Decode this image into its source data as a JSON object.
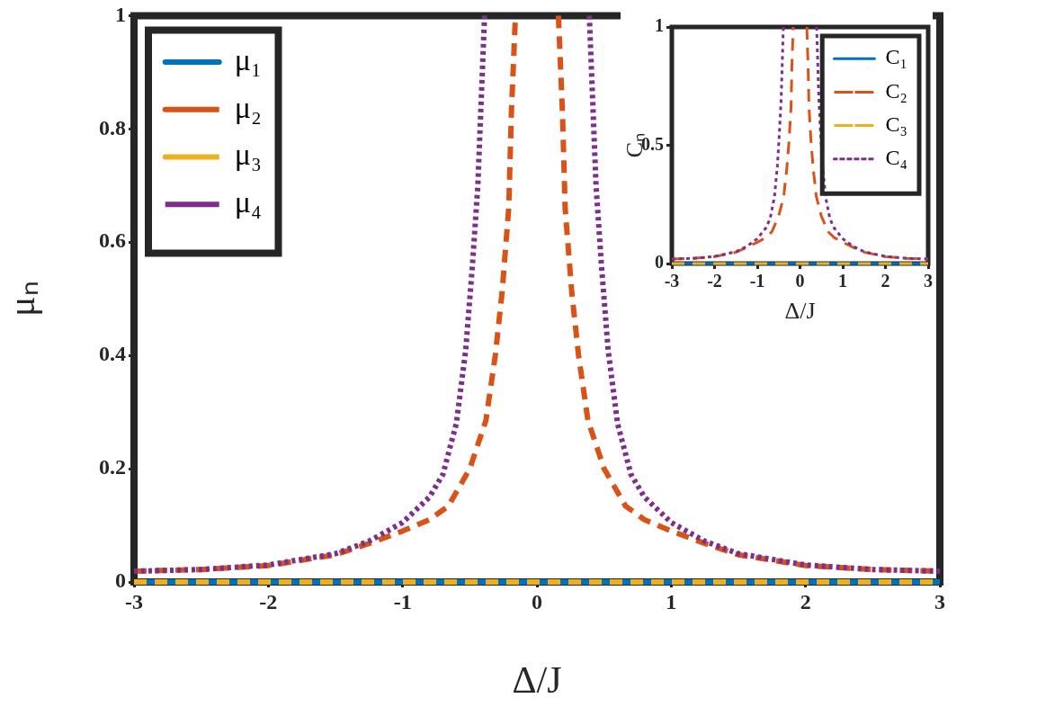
{
  "chart_data": [
    {
      "type": "line",
      "xlabel": "Δ/J",
      "ylabel": "μₙ",
      "xlim": [
        -3,
        3
      ],
      "xticks": [
        -3,
        -2,
        -1,
        0,
        1,
        2,
        3
      ],
      "ylim": [
        0,
        1
      ],
      "yticks": [
        0,
        0.2,
        0.4,
        0.6,
        0.8,
        1
      ],
      "legend": "top left",
      "marker": "none",
      "series": [
        {
          "name": "μ₁",
          "color": "#0072bd",
          "line_style": "solid",
          "x": [
            -3,
            3
          ],
          "values": [
            0,
            0
          ]
        },
        {
          "name": "μ₂",
          "color": "#d95319",
          "line_style": "dashed",
          "x": [
            -3,
            -2.5,
            -2,
            -1.5,
            -1.25,
            -1,
            -0.8,
            -0.66,
            -0.5,
            -0.38,
            -0.31,
            -0.26,
            -0.21,
            -0.19,
            -0.16,
            0,
            0.16,
            0.19,
            0.21,
            0.26,
            0.31,
            0.38,
            0.5,
            0.66,
            0.8,
            1,
            1.25,
            1.5,
            2,
            2.5,
            3
          ],
          "values": [
            0.019,
            0.022,
            0.029,
            0.048,
            0.068,
            0.09,
            0.11,
            0.134,
            0.2,
            0.285,
            0.4,
            0.51,
            0.66,
            0.83,
            1,
            null,
            1,
            0.83,
            0.66,
            0.51,
            0.4,
            0.285,
            0.2,
            0.134,
            0.11,
            0.09,
            0.068,
            0.048,
            0.029,
            0.022,
            0.019
          ]
        },
        {
          "name": "μ₃",
          "color": "#edb120",
          "line_style": "dashed",
          "x": [
            -3,
            3
          ],
          "values": [
            0,
            0
          ]
        },
        {
          "name": "μ₄",
          "color": "#7e2f8e",
          "line_style": "dotted",
          "x": [
            -3,
            -2.5,
            -2,
            -1.5,
            -1.25,
            -1,
            -0.8,
            -0.7,
            -0.6,
            -0.53,
            -0.48,
            -0.44,
            -0.39,
            0,
            0.39,
            0.44,
            0.48,
            0.53,
            0.6,
            0.7,
            0.8,
            1,
            1.25,
            1.5,
            2,
            2.5,
            3
          ],
          "values": [
            0.019,
            0.022,
            0.03,
            0.05,
            0.072,
            0.105,
            0.15,
            0.19,
            0.28,
            0.41,
            0.56,
            0.7,
            1,
            null,
            1,
            0.7,
            0.56,
            0.41,
            0.28,
            0.19,
            0.15,
            0.105,
            0.072,
            0.05,
            0.03,
            0.022,
            0.019
          ]
        }
      ]
    },
    {
      "type": "line",
      "xlabel": "Δ/J",
      "ylabel": "Cₙ",
      "xlim": [
        -3,
        3
      ],
      "xticks": [
        -3,
        -2,
        -1,
        0,
        1,
        2,
        3
      ],
      "ylim": [
        0,
        1
      ],
      "yticks": [
        0,
        0.5,
        1
      ],
      "legend": "top right",
      "marker": "none",
      "series": [
        {
          "name": "C₁",
          "color": "#0072bd",
          "line_style": "solid",
          "x": [
            -3,
            3
          ],
          "values": [
            0,
            0
          ]
        },
        {
          "name": "C₂",
          "color": "#d95319",
          "line_style": "dashed",
          "x": [
            -3,
            -2.5,
            -2,
            -1.5,
            -1.25,
            -1,
            -0.8,
            -0.66,
            -0.5,
            -0.38,
            -0.31,
            -0.26,
            -0.21,
            -0.19,
            -0.16,
            0,
            0.16,
            0.19,
            0.21,
            0.26,
            0.31,
            0.38,
            0.5,
            0.66,
            0.8,
            1,
            1.25,
            1.5,
            2,
            2.5,
            3
          ],
          "values": [
            0.019,
            0.022,
            0.029,
            0.048,
            0.068,
            0.09,
            0.11,
            0.134,
            0.2,
            0.285,
            0.4,
            0.51,
            0.66,
            0.83,
            1,
            null,
            1,
            0.83,
            0.66,
            0.51,
            0.4,
            0.285,
            0.2,
            0.134,
            0.11,
            0.09,
            0.068,
            0.048,
            0.029,
            0.022,
            0.019
          ]
        },
        {
          "name": "C₃",
          "color": "#edb120",
          "line_style": "dashed",
          "x": [
            -3,
            3
          ],
          "values": [
            0,
            0
          ]
        },
        {
          "name": "C₄",
          "color": "#7e2f8e",
          "line_style": "dotted",
          "x": [
            -3,
            -2.5,
            -2,
            -1.5,
            -1.25,
            -1,
            -0.8,
            -0.7,
            -0.6,
            -0.53,
            -0.48,
            -0.44,
            -0.39,
            0,
            0.39,
            0.44,
            0.48,
            0.53,
            0.6,
            0.7,
            0.8,
            1,
            1.25,
            1.5,
            2,
            2.5,
            3
          ],
          "values": [
            0.019,
            0.022,
            0.03,
            0.05,
            0.072,
            0.105,
            0.15,
            0.19,
            0.28,
            0.41,
            0.56,
            0.7,
            1,
            null,
            1,
            0.7,
            0.56,
            0.41,
            0.28,
            0.19,
            0.15,
            0.105,
            0.072,
            0.05,
            0.03,
            0.022,
            0.019
          ]
        }
      ]
    }
  ]
}
